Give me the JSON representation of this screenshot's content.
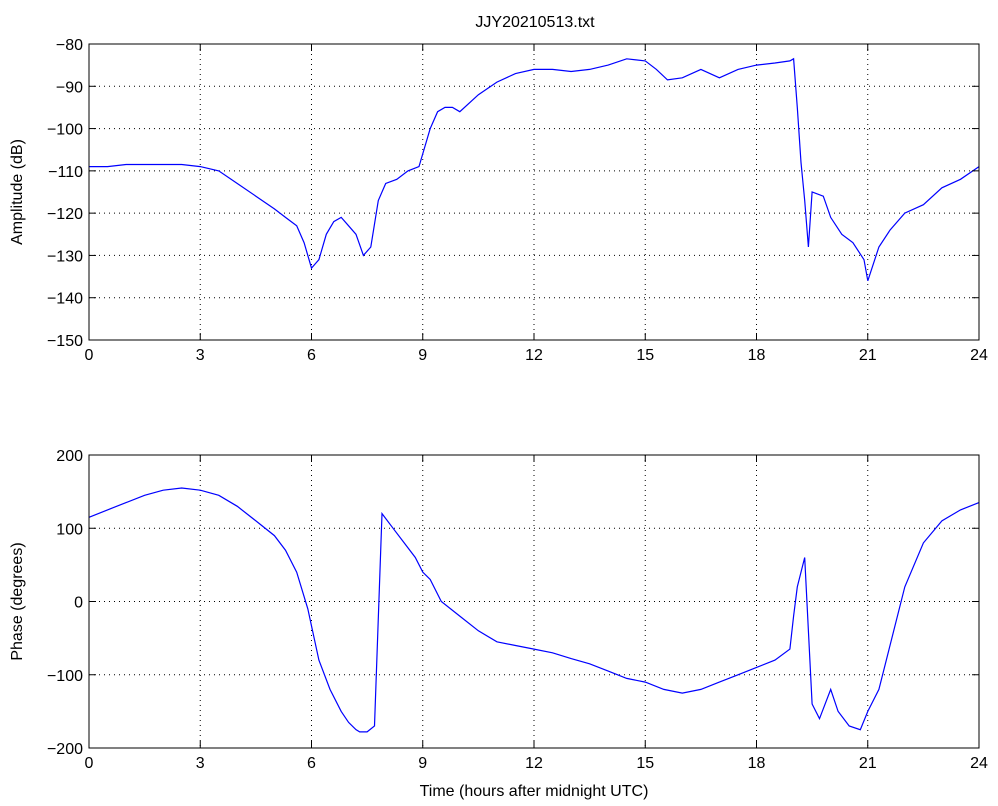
{
  "figure": {
    "title": "JJY20210513.txt"
  },
  "chart_data": [
    {
      "type": "line",
      "title": "JJY20210513.txt",
      "xlabel": "",
      "ylabel": "Amplitude (dB)",
      "xlim": [
        0,
        24
      ],
      "ylim": [
        -150,
        -80
      ],
      "xticks": [
        0,
        3,
        6,
        9,
        12,
        15,
        18,
        21,
        24
      ],
      "yticks": [
        -150,
        -140,
        -130,
        -120,
        -110,
        -100,
        -90,
        -80
      ],
      "ytick_labels": [
        "−150",
        "−140",
        "−130",
        "−120",
        "−110",
        "−100",
        "−90",
        "−80"
      ],
      "grid": true,
      "series": [
        {
          "color": "#0000ff",
          "x": [
            0,
            0.5,
            1,
            1.5,
            2,
            2.5,
            3,
            3.5,
            4,
            4.5,
            5,
            5.3,
            5.6,
            5.8,
            6.0,
            6.1,
            6.2,
            6.4,
            6.6,
            6.8,
            7.0,
            7.2,
            7.4,
            7.6,
            7.8,
            8.0,
            8.3,
            8.6,
            8.9,
            9.2,
            9.4,
            9.6,
            9.8,
            10.0,
            10.5,
            11.0,
            11.5,
            12.0,
            12.5,
            13.0,
            13.5,
            14.0,
            14.5,
            15.0,
            15.3,
            15.6,
            16.0,
            16.5,
            17.0,
            17.5,
            18.0,
            18.5,
            18.9,
            19.0,
            19.1,
            19.2,
            19.3,
            19.4,
            19.5,
            19.8,
            20.0,
            20.3,
            20.6,
            20.9,
            21.0,
            21.3,
            21.6,
            22.0,
            22.5,
            23.0,
            23.5,
            24.0
          ],
          "y": [
            -109,
            -109,
            -108.5,
            -108.5,
            -108.5,
            -108.5,
            -109,
            -110,
            -113,
            -116,
            -119,
            -121,
            -123,
            -127,
            -133,
            -132,
            -131,
            -125,
            -122,
            -121,
            -123,
            -125,
            -130,
            -128,
            -117,
            -113,
            -112,
            -110,
            -109,
            -100,
            -96,
            -95,
            -95,
            -96,
            -92,
            -89,
            -87,
            -86,
            -86,
            -86.5,
            -86,
            -85,
            -83.5,
            -84,
            -86,
            -88.5,
            -88,
            -86,
            -88,
            -86,
            -85,
            -84.5,
            -84,
            -83.5,
            -95,
            -108,
            -117,
            -128,
            -115,
            -116,
            -121,
            -125,
            -127,
            -131,
            -136,
            -128,
            -124,
            -120,
            -118,
            -114,
            -112,
            -109
          ]
        }
      ]
    },
    {
      "type": "line",
      "title": "",
      "xlabel": "Time (hours after midnight UTC)",
      "ylabel": "Phase (degrees)",
      "xlim": [
        0,
        24
      ],
      "ylim": [
        -200,
        200
      ],
      "xticks": [
        0,
        3,
        6,
        9,
        12,
        15,
        18,
        21,
        24
      ],
      "yticks": [
        -200,
        -100,
        0,
        100,
        200
      ],
      "ytick_labels": [
        "−200",
        "−100",
        "0",
        "100",
        "200"
      ],
      "grid": true,
      "series": [
        {
          "color": "#0000ff",
          "x": [
            0,
            0.5,
            1,
            1.5,
            2,
            2.5,
            3,
            3.5,
            4,
            4.5,
            5,
            5.3,
            5.6,
            5.9,
            6.2,
            6.5,
            6.8,
            7.0,
            7.2,
            7.3,
            7.5,
            7.7,
            7.9,
            8.2,
            8.5,
            8.8,
            9.0,
            9.2,
            9.5,
            10.0,
            10.5,
            11.0,
            11.5,
            12.0,
            12.5,
            13.0,
            13.5,
            14.0,
            14.5,
            15.0,
            15.5,
            16.0,
            16.5,
            17.0,
            17.5,
            18.0,
            18.5,
            18.9,
            19.0,
            19.1,
            19.3,
            19.5,
            19.7,
            20.0,
            20.2,
            20.5,
            20.8,
            21.0,
            21.3,
            21.6,
            22.0,
            22.5,
            23.0,
            23.5,
            24.0
          ],
          "y": [
            115,
            125,
            135,
            145,
            152,
            155,
            152,
            145,
            130,
            110,
            90,
            70,
            40,
            -10,
            -80,
            -120,
            -150,
            -165,
            -175,
            -178,
            -178,
            -170,
            120,
            100,
            80,
            60,
            40,
            30,
            0,
            -20,
            -40,
            -55,
            -60,
            -65,
            -70,
            -78,
            -85,
            -95,
            -105,
            -110,
            -120,
            -125,
            -120,
            -110,
            -100,
            -90,
            -80,
            -65,
            -20,
            20,
            60,
            -140,
            -160,
            -120,
            -150,
            -170,
            -175,
            -150,
            -120,
            -60,
            20,
            80,
            110,
            125,
            135
          ]
        }
      ]
    }
  ]
}
